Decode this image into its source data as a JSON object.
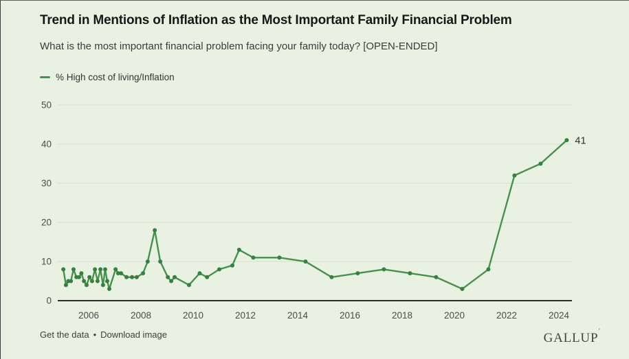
{
  "chart_data": {
    "type": "line",
    "title": "Trend in Mentions of Inflation as the Most Important Family Financial Problem",
    "subtitle": "What is the most important financial problem facing your family today? [OPEN-ENDED]",
    "series": [
      {
        "name": "% High cost of living/Inflation",
        "color": "#47904e",
        "dot_color": "#37803f",
        "x": [
          2005.03,
          2005.13,
          2005.22,
          2005.32,
          2005.42,
          2005.53,
          2005.63,
          2005.72,
          2005.82,
          2005.92,
          2006.03,
          2006.13,
          2006.24,
          2006.34,
          2006.45,
          2006.55,
          2006.63,
          2006.71,
          2006.79,
          2007.03,
          2007.13,
          2007.24,
          2007.45,
          2007.66,
          2007.84,
          2008.08,
          2008.26,
          2008.53,
          2008.74,
          2009.03,
          2009.16,
          2009.29,
          2009.84,
          2010.25,
          2010.53,
          2011.0,
          2011.5,
          2011.76,
          2012.3,
          2013.3,
          2014.3,
          2015.3,
          2016.3,
          2017.3,
          2018.3,
          2019.3,
          2020.3,
          2021.3,
          2022.3,
          2023.3,
          2024.3
        ],
        "values": [
          8,
          4,
          5,
          5,
          8,
          6,
          6,
          7,
          5,
          4,
          6,
          5,
          8,
          5,
          8,
          4,
          8,
          5,
          3,
          8,
          7,
          7,
          6,
          6,
          6,
          7,
          10,
          18,
          10,
          6,
          5,
          6,
          4,
          7,
          6,
          8,
          9,
          13,
          11,
          11,
          10,
          6,
          7,
          8,
          7,
          6,
          3,
          8,
          32,
          35,
          41
        ]
      }
    ],
    "xticks": [
      2006,
      2008,
      2010,
      2012,
      2014,
      2016,
      2018,
      2020,
      2022,
      2024
    ],
    "yticks": [
      0,
      10,
      20,
      30,
      40,
      50
    ],
    "ylim": [
      0,
      50
    ],
    "xlim": [
      2004.8,
      2024.75
    ],
    "grid": true,
    "legend_position": "top-left",
    "end_label": "41",
    "background": "#e9f1e3"
  },
  "footer": {
    "get_data_label": "Get the data",
    "separator": "•",
    "download_label": "Download image",
    "brand": "GALLUP",
    "brand_mark": "ʼ"
  }
}
